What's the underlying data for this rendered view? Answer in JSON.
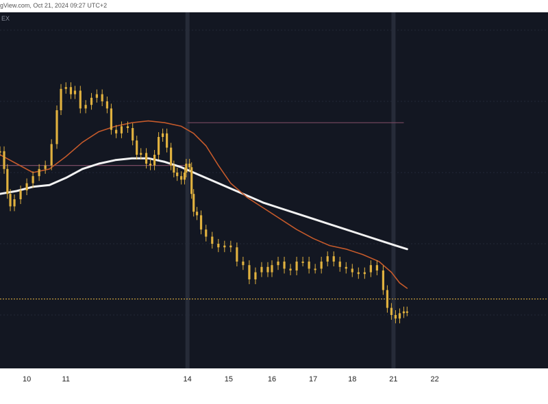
{
  "header": {
    "text": "gView.com, Oct 21, 2024 09:27 UTC+2"
  },
  "chart_symbol_fragment": "EX",
  "colors": {
    "background": "#131722",
    "candle": "#e0b13f",
    "ema_fast": "#c55a2b",
    "ema_slow": "#f2f2f2",
    "level_upper": "#7a4a63",
    "level_lower": "#7a4a63",
    "price_line": "#c49b3c"
  },
  "chart_data": {
    "type": "line",
    "title": "",
    "xlabel": "",
    "ylabel": "",
    "x_ticks": [
      "10",
      "11",
      "14",
      "15",
      "16",
      "17",
      "18",
      "21",
      "22"
    ],
    "x_range": [
      9.4,
      22.7
    ],
    "y_range": [
      0,
      100
    ],
    "price_series": [
      [
        9.4,
        61.0
      ],
      [
        9.5,
        56.0
      ],
      [
        9.58,
        49.0
      ],
      [
        9.65,
        45.5
      ],
      [
        9.75,
        47.5
      ],
      [
        9.9,
        50.0
      ],
      [
        10.05,
        52.0
      ],
      [
        10.2,
        54.0
      ],
      [
        10.35,
        56.0
      ],
      [
        10.5,
        57.0
      ],
      [
        10.65,
        63.0
      ],
      [
        10.78,
        72.5
      ],
      [
        10.88,
        78.5
      ],
      [
        11.0,
        79.0
      ],
      [
        11.12,
        77.0
      ],
      [
        11.22,
        78.0
      ],
      [
        11.35,
        73.0
      ],
      [
        11.48,
        74.0
      ],
      [
        11.62,
        76.0
      ],
      [
        11.75,
        77.0
      ],
      [
        11.88,
        75.0
      ],
      [
        12.0,
        73.0
      ],
      [
        12.1,
        67.0
      ],
      [
        12.22,
        66.0
      ],
      [
        12.35,
        68.0
      ],
      [
        12.5,
        67.5
      ],
      [
        12.62,
        64.0
      ],
      [
        12.72,
        60.0
      ],
      [
        12.82,
        60.5
      ],
      [
        12.95,
        57.5
      ],
      [
        13.05,
        57.0
      ],
      [
        13.15,
        60.0
      ],
      [
        13.25,
        65.0
      ],
      [
        13.35,
        66.0
      ],
      [
        13.45,
        62.0
      ],
      [
        13.55,
        57.0
      ],
      [
        13.62,
        55.0
      ],
      [
        13.7,
        54.0
      ],
      [
        13.8,
        53.0
      ],
      [
        13.88,
        55.0
      ],
      [
        13.92,
        57.5
      ],
      [
        14.0,
        56.5
      ],
      [
        14.05,
        49.0
      ],
      [
        14.1,
        44.0
      ],
      [
        14.18,
        43.0
      ],
      [
        14.28,
        39.0
      ],
      [
        14.4,
        37.0
      ],
      [
        14.55,
        35.0
      ],
      [
        14.7,
        34.0
      ],
      [
        14.85,
        34.5
      ],
      [
        15.0,
        34.0
      ],
      [
        15.15,
        30.0
      ],
      [
        15.3,
        29.0
      ],
      [
        15.45,
        25.0
      ],
      [
        15.6,
        27.0
      ],
      [
        15.75,
        28.5
      ],
      [
        15.9,
        27.0
      ],
      [
        16.0,
        29.0
      ],
      [
        16.15,
        30.0
      ],
      [
        16.3,
        28.0
      ],
      [
        16.45,
        27.5
      ],
      [
        16.6,
        30.0
      ],
      [
        16.75,
        30.0
      ],
      [
        16.9,
        28.0
      ],
      [
        17.05,
        28.0
      ],
      [
        17.2,
        30.0
      ],
      [
        17.35,
        31.5
      ],
      [
        17.5,
        30.0
      ],
      [
        17.65,
        28.5
      ],
      [
        17.8,
        28.0
      ],
      [
        17.95,
        27.0
      ],
      [
        18.1,
        26.5
      ],
      [
        18.25,
        27.0
      ],
      [
        18.4,
        29.0
      ],
      [
        18.55,
        27.5
      ],
      [
        18.7,
        22.0
      ],
      [
        18.8,
        17.0
      ],
      [
        18.9,
        15.0
      ],
      [
        19.0,
        14.0
      ],
      [
        19.1,
        15.5
      ],
      [
        19.2,
        16.0
      ],
      [
        19.28,
        16.0
      ]
    ],
    "ema_fast": [
      [
        9.4,
        60.0
      ],
      [
        9.8,
        57.5
      ],
      [
        10.2,
        55.0
      ],
      [
        10.6,
        56.0
      ],
      [
        11.0,
        59.5
      ],
      [
        11.4,
        63.5
      ],
      [
        11.8,
        66.5
      ],
      [
        12.2,
        68.0
      ],
      [
        12.6,
        69.0
      ],
      [
        13.0,
        69.5
      ],
      [
        13.4,
        69.0
      ],
      [
        13.8,
        68.0
      ],
      [
        14.1,
        66.0
      ],
      [
        14.4,
        62.5
      ],
      [
        14.7,
        57.0
      ],
      [
        15.0,
        52.0
      ],
      [
        15.4,
        48.0
      ],
      [
        15.8,
        45.0
      ],
      [
        16.2,
        42.0
      ],
      [
        16.6,
        39.0
      ],
      [
        17.0,
        36.5
      ],
      [
        17.4,
        34.5
      ],
      [
        17.8,
        33.5
      ],
      [
        18.2,
        32.0
      ],
      [
        18.6,
        30.0
      ],
      [
        18.9,
        27.0
      ],
      [
        19.1,
        24.0
      ],
      [
        19.28,
        22.5
      ]
    ],
    "ema_slow": [
      [
        9.4,
        49.0
      ],
      [
        9.8,
        49.8
      ],
      [
        10.2,
        51.0
      ],
      [
        10.6,
        51.5
      ],
      [
        11.0,
        53.5
      ],
      [
        11.4,
        56.0
      ],
      [
        11.8,
        57.5
      ],
      [
        12.2,
        58.5
      ],
      [
        12.6,
        59.0
      ],
      [
        13.0,
        59.0
      ],
      [
        13.4,
        58.0
      ],
      [
        13.8,
        56.5
      ],
      [
        14.2,
        54.5
      ],
      [
        14.6,
        52.5
      ],
      [
        15.0,
        50.5
      ],
      [
        15.4,
        48.5
      ],
      [
        15.8,
        46.5
      ],
      [
        16.2,
        45.0
      ],
      [
        16.6,
        43.5
      ],
      [
        17.0,
        42.0
      ],
      [
        17.4,
        40.5
      ],
      [
        17.8,
        39.0
      ],
      [
        18.2,
        37.5
      ],
      [
        18.6,
        36.0
      ],
      [
        19.0,
        34.5
      ],
      [
        19.28,
        33.5
      ]
    ],
    "horizontal_levels": [
      {
        "name": "upper-level",
        "y": 69.0,
        "x_from": 13.95,
        "x_to": 19.2
      },
      {
        "name": "left-level",
        "y": 57.0,
        "x_from": 9.4,
        "x_to": 13.95
      },
      {
        "name": "last-price",
        "y": 19.5,
        "x_from": 9.4,
        "x_to": 22.7
      }
    ],
    "vertical_highlights": [
      13.95,
      18.95
    ],
    "grid": true,
    "legend": "none"
  }
}
